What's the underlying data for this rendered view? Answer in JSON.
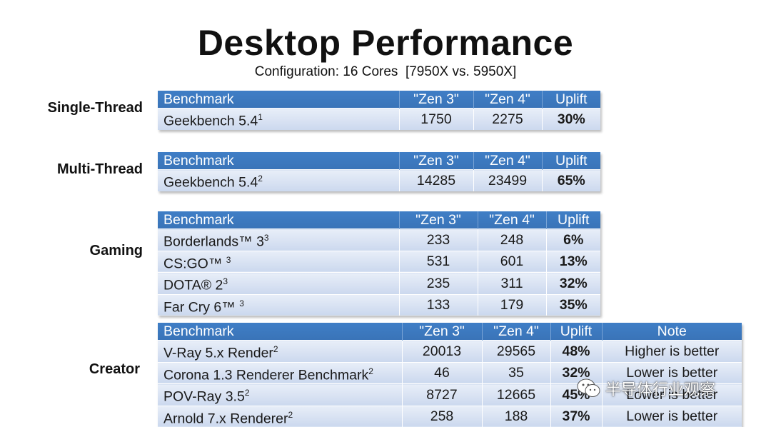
{
  "title": "Desktop Performance",
  "subtitle": "Configuration: 16 Cores  [7950X vs. 5950X]",
  "sections": {
    "single": {
      "label": "Single-Thread",
      "headers": [
        "Benchmark",
        "\"Zen 3\"",
        "\"Zen 4\"",
        "Uplift"
      ],
      "rows": [
        {
          "name": "Geekbench 5.4",
          "sup": "1",
          "zen3": "1750",
          "zen4": "2275",
          "uplift": "30%"
        }
      ]
    },
    "multi": {
      "label": "Multi-Thread",
      "headers": [
        "Benchmark",
        "\"Zen 3\"",
        "\"Zen 4\"",
        "Uplift"
      ],
      "rows": [
        {
          "name": "Geekbench 5.4",
          "sup": "2",
          "zen3": "14285",
          "zen4": "23499",
          "uplift": "65%"
        }
      ]
    },
    "gaming": {
      "label": "Gaming",
      "headers": [
        "Benchmark",
        "\"Zen 3\"",
        "\"Zen 4\"",
        "Uplift"
      ],
      "rows": [
        {
          "name": "Borderlands™ 3",
          "sup": "3",
          "zen3": "233",
          "zen4": "248",
          "uplift": "6%"
        },
        {
          "name": "CS:GO™ ",
          "sup": "3",
          "zen3": "531",
          "zen4": "601",
          "uplift": "13%"
        },
        {
          "name": "DOTA® 2",
          "sup": "3",
          "zen3": "235",
          "zen4": "311",
          "uplift": "32%"
        },
        {
          "name": "Far Cry 6™ ",
          "sup": "3",
          "zen3": "133",
          "zen4": "179",
          "uplift": "35%"
        }
      ]
    },
    "creator": {
      "label": "Creator",
      "headers": [
        "Benchmark",
        "\"Zen 3\"",
        "\"Zen 4\"",
        "Uplift",
        "Note"
      ],
      "rows": [
        {
          "name": "V-Ray 5.x Render",
          "sup": "2",
          "zen3": "20013",
          "zen4": "29565",
          "uplift": "48%",
          "note": "Higher is better"
        },
        {
          "name": "Corona 1.3 Renderer Benchmark",
          "sup": "2",
          "zen3": "46",
          "zen4": "35",
          "uplift": "32%",
          "note": "Lower is better"
        },
        {
          "name": "POV-Ray 3.5",
          "sup": "2",
          "zen3": "8727",
          "zen4": "12665",
          "uplift": "45%",
          "note": "Lower is better"
        },
        {
          "name": "Arnold 7.x Renderer",
          "sup": "2",
          "zen3": "258",
          "zen4": "188",
          "uplift": "37%",
          "note": "Lower is better"
        }
      ]
    }
  },
  "watermark": {
    "text": "半导体行业观察",
    "icon": "wechat-icon"
  }
}
